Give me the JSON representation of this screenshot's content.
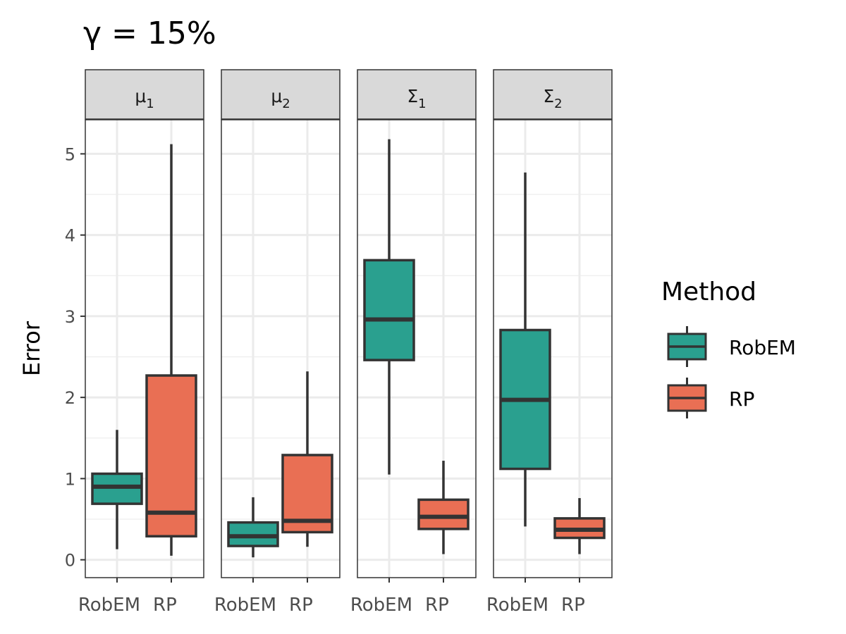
{
  "chart_data": {
    "type": "box",
    "title": "γ = 15%",
    "ylabel": "Error",
    "xlabel": "",
    "ylim": [
      -0.22,
      5.42
    ],
    "yticks": [
      0,
      1,
      2,
      3,
      4,
      5
    ],
    "categories": [
      "RobEM",
      "RP"
    ],
    "colors": {
      "RobEM": "#2aa08f",
      "RP": "#e96f54"
    },
    "legend": {
      "title": "Method",
      "position": "right",
      "entries": [
        "RobEM",
        "RP"
      ]
    },
    "panels": [
      {
        "strip": {
          "base": "μ",
          "sub": "1"
        },
        "boxes": [
          {
            "method": "RobEM",
            "whisker_low": 0.13,
            "q1": 0.69,
            "median": 0.9,
            "q3": 1.06,
            "whisker_high": 1.6
          },
          {
            "method": "RP",
            "whisker_low": 0.05,
            "q1": 0.29,
            "median": 0.58,
            "q3": 2.27,
            "whisker_high": 5.12
          }
        ]
      },
      {
        "strip": {
          "base": "μ",
          "sub": "2"
        },
        "boxes": [
          {
            "method": "RobEM",
            "whisker_low": 0.03,
            "q1": 0.17,
            "median": 0.29,
            "q3": 0.46,
            "whisker_high": 0.77
          },
          {
            "method": "RP",
            "whisker_low": 0.16,
            "q1": 0.34,
            "median": 0.48,
            "q3": 1.29,
            "whisker_high": 2.32
          }
        ]
      },
      {
        "strip": {
          "base": "Σ",
          "sub": "1"
        },
        "boxes": [
          {
            "method": "RobEM",
            "whisker_low": 1.05,
            "q1": 2.46,
            "median": 2.96,
            "q3": 3.69,
            "whisker_high": 5.18
          },
          {
            "method": "RP",
            "whisker_low": 0.07,
            "q1": 0.38,
            "median": 0.53,
            "q3": 0.74,
            "whisker_high": 1.22
          }
        ]
      },
      {
        "strip": {
          "base": "Σ",
          "sub": "2"
        },
        "boxes": [
          {
            "method": "RobEM",
            "whisker_low": 0.41,
            "q1": 1.12,
            "median": 1.97,
            "q3": 2.83,
            "whisker_high": 4.77
          },
          {
            "method": "RP",
            "whisker_low": 0.07,
            "q1": 0.27,
            "median": 0.37,
            "q3": 0.51,
            "whisker_high": 0.76
          }
        ]
      }
    ]
  }
}
